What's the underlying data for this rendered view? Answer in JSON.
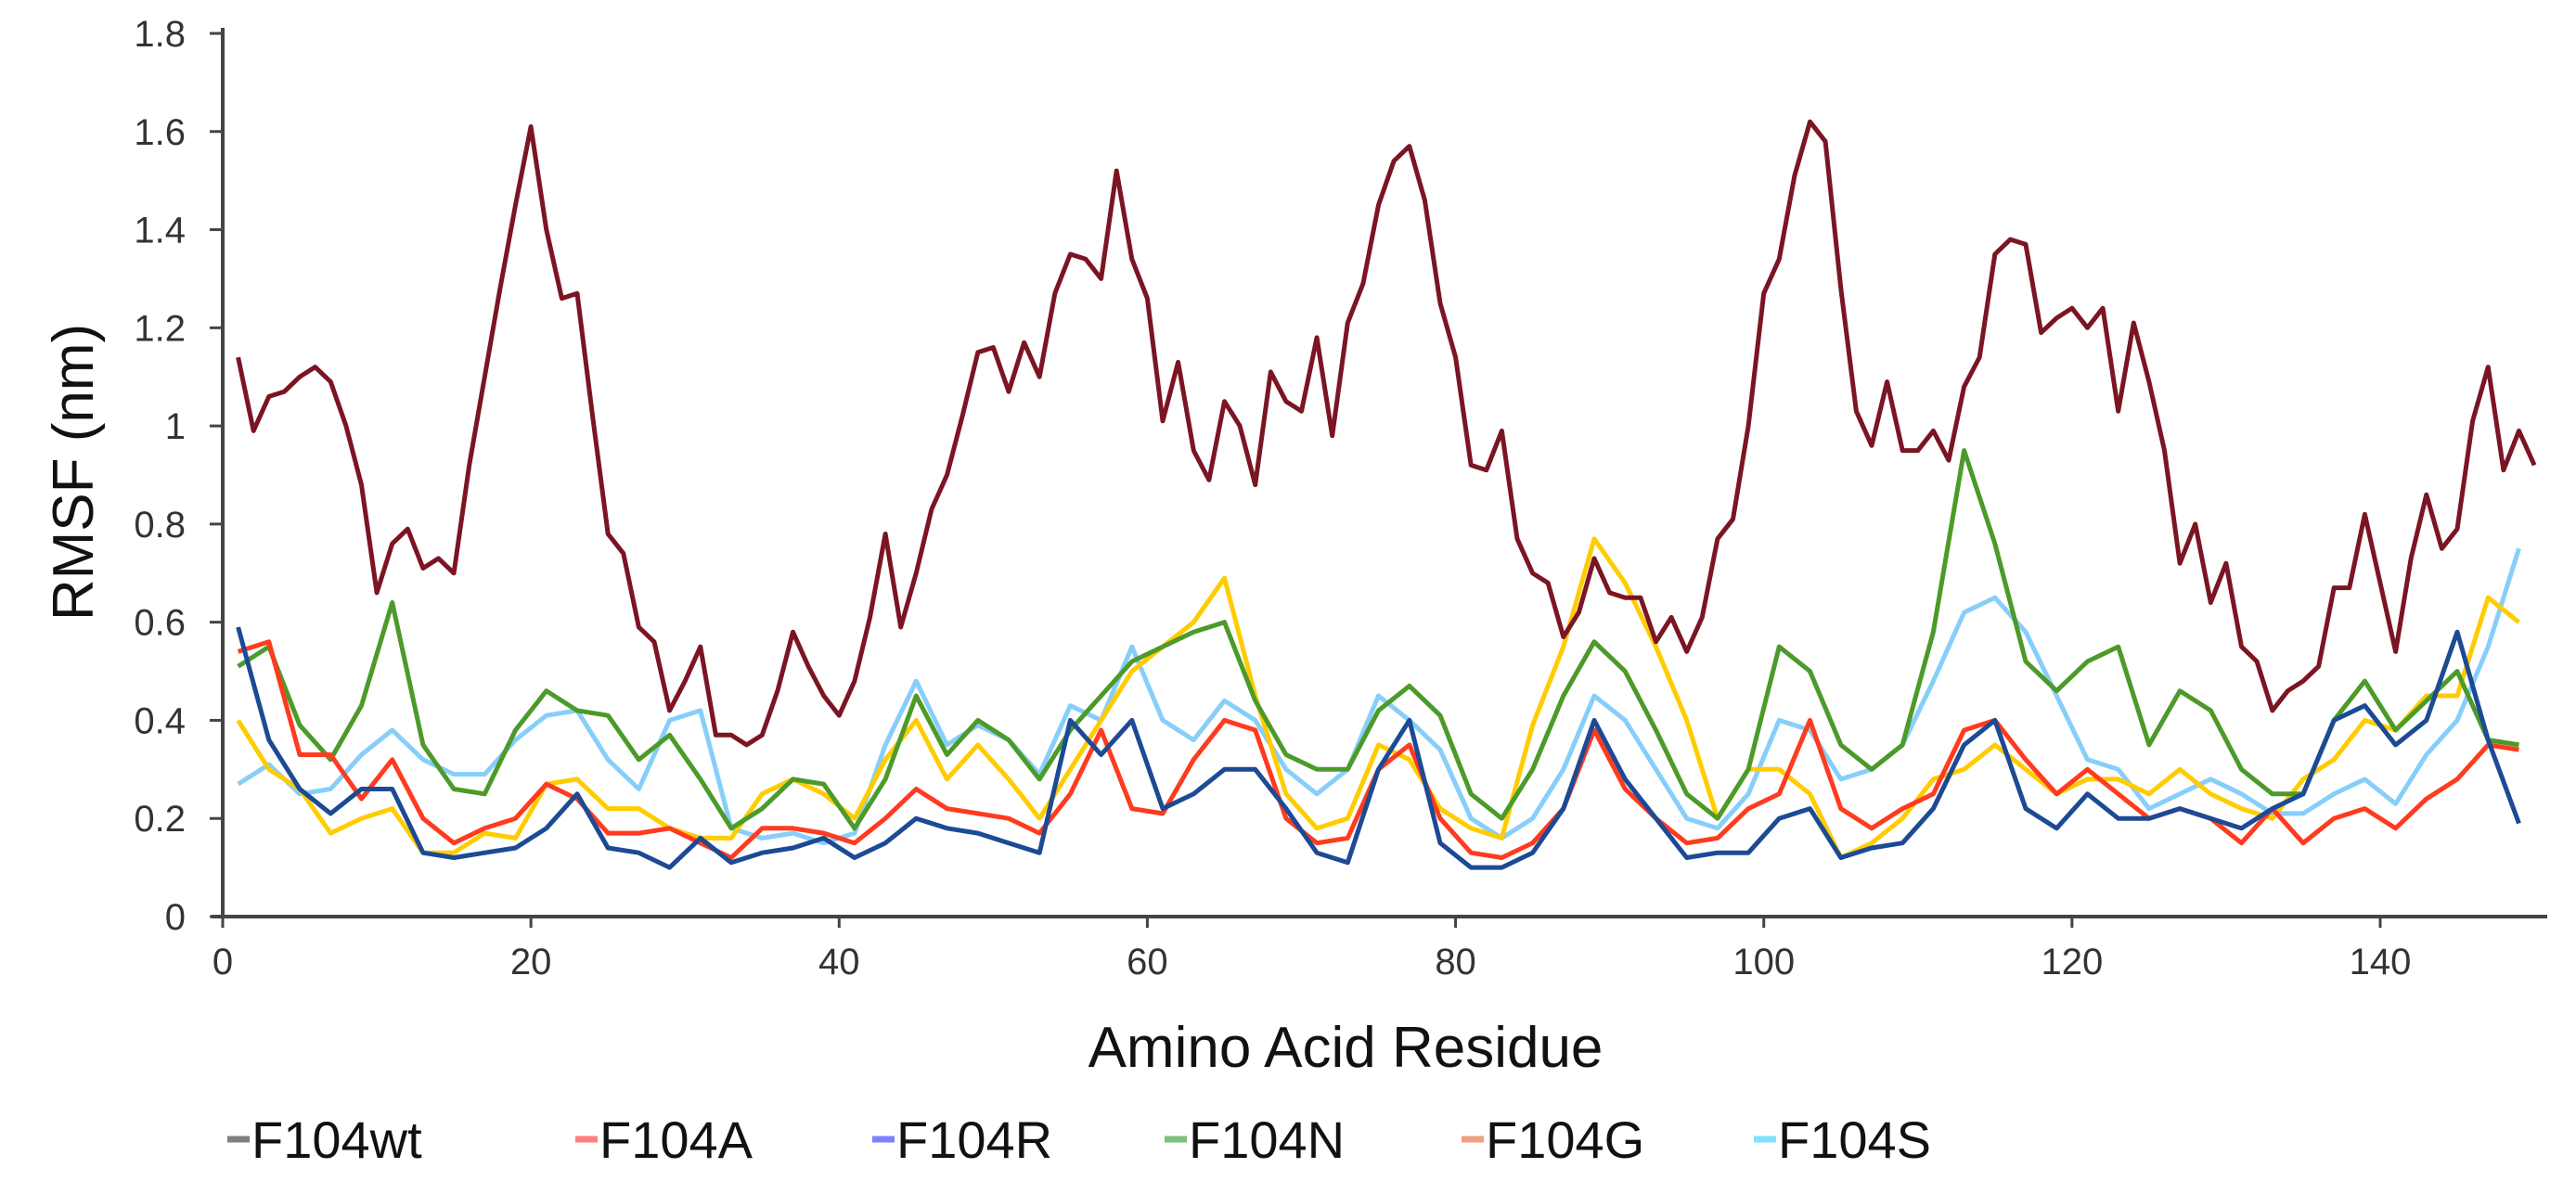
{
  "chart_data": {
    "type": "line",
    "title": "",
    "xlabel": "Amino Acid Residue",
    "ylabel": "RMSF (nm)",
    "xlim": [
      0,
      150
    ],
    "ylim": [
      0,
      1.8
    ],
    "x_ticks": [
      "0",
      "20",
      "40",
      "60",
      "80",
      "100",
      "120",
      "140"
    ],
    "x_tick_values": [
      0,
      20,
      40,
      60,
      80,
      100,
      120,
      140
    ],
    "y_ticks": [
      "0",
      "0.2",
      "0.4",
      "0.6",
      "0.8",
      "1",
      "1.2",
      "1.4",
      "1.6",
      "1.8"
    ],
    "y_tick_values": [
      0,
      0.2,
      0.4,
      0.6,
      0.8,
      1.0,
      1.2,
      1.4,
      1.6,
      1.8
    ],
    "grid": false,
    "legend_position": "bottom",
    "series": [
      {
        "name": "F104wt",
        "line_color": "#7b1523",
        "legend_color": "#808080",
        "x_start": 1,
        "x_step": 1,
        "values": [
          1.14,
          0.99,
          1.06,
          1.07,
          1.1,
          1.12,
          1.09,
          1.0,
          0.88,
          0.66,
          0.76,
          0.79,
          0.71,
          0.73,
          0.7,
          0.92,
          1.1,
          1.28,
          1.45,
          1.61,
          1.4,
          1.26,
          1.27,
          1.02,
          0.78,
          0.74,
          0.59,
          0.56,
          0.42,
          0.48,
          0.55,
          0.37,
          0.37,
          0.35,
          0.37,
          0.46,
          0.58,
          0.51,
          0.45,
          0.41,
          0.48,
          0.61,
          0.78,
          0.59,
          0.7,
          0.83,
          0.9,
          1.02,
          1.15,
          1.16,
          1.07,
          1.17,
          1.1,
          1.27,
          1.35,
          1.34,
          1.3,
          1.52,
          1.34,
          1.26,
          1.01,
          1.13,
          0.95,
          0.89,
          1.05,
          1.0,
          0.88,
          1.11,
          1.05,
          1.03,
          1.18,
          0.98,
          1.21,
          1.29,
          1.45,
          1.54,
          1.57,
          1.46,
          1.25,
          1.14,
          0.92,
          0.91,
          0.99,
          0.77,
          0.7,
          0.68,
          0.57,
          0.62,
          0.73,
          0.66,
          0.65,
          0.65,
          0.56,
          0.61,
          0.54,
          0.61,
          0.77,
          0.81,
          1.0,
          1.27,
          1.34,
          1.51,
          1.62,
          1.58,
          1.28,
          1.03,
          0.96,
          1.09,
          0.95,
          0.95,
          0.99,
          0.93,
          1.08,
          1.14,
          1.35,
          1.38,
          1.37,
          1.19,
          1.22,
          1.24,
          1.2,
          1.24,
          1.03,
          1.21,
          1.09,
          0.95,
          0.72,
          0.8,
          0.64,
          0.72,
          0.55,
          0.52,
          0.42,
          0.46,
          0.48,
          0.51,
          0.67,
          0.67,
          0.82,
          0.68,
          0.54,
          0.73,
          0.86,
          0.75,
          0.79,
          1.01,
          1.12,
          0.91,
          0.99,
          0.92
        ]
      },
      {
        "name": "F104A",
        "line_color": "#ff3b1f",
        "legend_color": "#ff7f7f",
        "x_start": 1,
        "x_step": 2,
        "values": [
          0.54,
          0.56,
          0.33,
          0.33,
          0.24,
          0.32,
          0.2,
          0.15,
          0.18,
          0.2,
          0.27,
          0.24,
          0.17,
          0.17,
          0.18,
          0.15,
          0.12,
          0.18,
          0.18,
          0.17,
          0.15,
          0.2,
          0.26,
          0.22,
          0.21,
          0.2,
          0.17,
          0.25,
          0.38,
          0.22,
          0.21,
          0.32,
          0.4,
          0.38,
          0.2,
          0.15,
          0.16,
          0.3,
          0.35,
          0.2,
          0.13,
          0.12,
          0.15,
          0.22,
          0.38,
          0.26,
          0.2,
          0.15,
          0.16,
          0.22,
          0.25,
          0.4,
          0.22,
          0.18,
          0.22,
          0.25,
          0.38,
          0.4,
          0.32,
          0.25,
          0.3,
          0.25,
          0.2,
          0.22,
          0.2,
          0.15,
          0.22,
          0.15,
          0.2,
          0.22,
          0.18,
          0.24,
          0.28,
          0.35,
          0.34
        ]
      },
      {
        "name": "F104R",
        "line_color": "#1c4a94",
        "legend_color": "#8080ff",
        "x_start": 1,
        "x_step": 2,
        "values": [
          0.59,
          0.36,
          0.26,
          0.21,
          0.26,
          0.26,
          0.13,
          0.12,
          0.13,
          0.14,
          0.18,
          0.25,
          0.14,
          0.13,
          0.1,
          0.16,
          0.11,
          0.13,
          0.14,
          0.16,
          0.12,
          0.15,
          0.2,
          0.18,
          0.17,
          0.15,
          0.13,
          0.4,
          0.33,
          0.4,
          0.22,
          0.25,
          0.3,
          0.3,
          0.22,
          0.13,
          0.11,
          0.3,
          0.4,
          0.15,
          0.1,
          0.1,
          0.13,
          0.22,
          0.4,
          0.28,
          0.2,
          0.12,
          0.13,
          0.13,
          0.2,
          0.22,
          0.12,
          0.14,
          0.15,
          0.22,
          0.35,
          0.4,
          0.22,
          0.18,
          0.25,
          0.2,
          0.2,
          0.22,
          0.2,
          0.18,
          0.22,
          0.25,
          0.4,
          0.43,
          0.35,
          0.4,
          0.58,
          0.36,
          0.19
        ]
      },
      {
        "name": "F104N",
        "line_color": "#4c9a2a",
        "legend_color": "#7fbf7f",
        "x_start": 1,
        "x_step": 2,
        "values": [
          0.51,
          0.55,
          0.39,
          0.32,
          0.43,
          0.64,
          0.35,
          0.26,
          0.25,
          0.38,
          0.46,
          0.42,
          0.41,
          0.32,
          0.37,
          0.28,
          0.18,
          0.22,
          0.28,
          0.27,
          0.18,
          0.28,
          0.45,
          0.33,
          0.4,
          0.36,
          0.28,
          0.38,
          0.45,
          0.52,
          0.55,
          0.58,
          0.6,
          0.44,
          0.33,
          0.3,
          0.3,
          0.42,
          0.47,
          0.41,
          0.25,
          0.2,
          0.3,
          0.45,
          0.56,
          0.5,
          0.38,
          0.25,
          0.2,
          0.3,
          0.55,
          0.5,
          0.35,
          0.3,
          0.35,
          0.58,
          0.95,
          0.76,
          0.52,
          0.46,
          0.52,
          0.55,
          0.35,
          0.46,
          0.42,
          0.3,
          0.25,
          0.25,
          0.4,
          0.48,
          0.38,
          0.44,
          0.5,
          0.36,
          0.35
        ]
      },
      {
        "name": "F104G",
        "line_color": "#ffcc00",
        "legend_color": "#f0a080",
        "x_start": 1,
        "x_step": 2,
        "values": [
          0.4,
          0.3,
          0.26,
          0.17,
          0.2,
          0.22,
          0.13,
          0.13,
          0.17,
          0.16,
          0.27,
          0.28,
          0.22,
          0.22,
          0.18,
          0.16,
          0.16,
          0.25,
          0.28,
          0.25,
          0.2,
          0.32,
          0.4,
          0.28,
          0.35,
          0.28,
          0.2,
          0.3,
          0.4,
          0.5,
          0.55,
          0.6,
          0.69,
          0.45,
          0.25,
          0.18,
          0.2,
          0.35,
          0.32,
          0.22,
          0.18,
          0.16,
          0.39,
          0.55,
          0.77,
          0.68,
          0.55,
          0.4,
          0.2,
          0.3,
          0.3,
          0.25,
          0.12,
          0.15,
          0.2,
          0.28,
          0.3,
          0.35,
          0.3,
          0.25,
          0.28,
          0.28,
          0.25,
          0.3,
          0.25,
          0.22,
          0.2,
          0.28,
          0.32,
          0.4,
          0.38,
          0.45,
          0.45,
          0.65,
          0.6
        ]
      },
      {
        "name": "F104S",
        "line_color": "#87cefa",
        "legend_color": "#80e0ff",
        "x_start": 1,
        "x_step": 2,
        "values": [
          0.27,
          0.31,
          0.25,
          0.26,
          0.33,
          0.38,
          0.32,
          0.29,
          0.29,
          0.36,
          0.41,
          0.42,
          0.32,
          0.26,
          0.4,
          0.42,
          0.18,
          0.16,
          0.17,
          0.15,
          0.17,
          0.35,
          0.48,
          0.35,
          0.39,
          0.36,
          0.29,
          0.43,
          0.4,
          0.55,
          0.4,
          0.36,
          0.44,
          0.4,
          0.3,
          0.25,
          0.3,
          0.45,
          0.4,
          0.34,
          0.2,
          0.16,
          0.2,
          0.3,
          0.45,
          0.4,
          0.3,
          0.2,
          0.18,
          0.25,
          0.4,
          0.38,
          0.28,
          0.3,
          0.35,
          0.48,
          0.62,
          0.65,
          0.58,
          0.45,
          0.32,
          0.3,
          0.22,
          0.25,
          0.28,
          0.25,
          0.21,
          0.21,
          0.25,
          0.28,
          0.23,
          0.33,
          0.4,
          0.55,
          0.75
        ]
      }
    ]
  }
}
